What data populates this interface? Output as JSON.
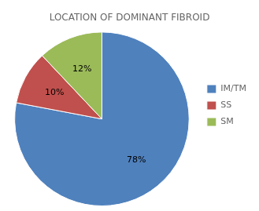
{
  "chart_data": {
    "type": "pie",
    "title": "LOCATION OF DOMINANT FIBROID",
    "categories": [
      "IM/TM",
      "SS",
      "SM"
    ],
    "values": [
      78,
      10,
      12
    ],
    "value_labels": [
      "78%",
      "10%",
      "12%"
    ],
    "colors": [
      "#4F81BD",
      "#C0504D",
      "#9BBB59"
    ],
    "data_labels": true,
    "legend": "right"
  }
}
